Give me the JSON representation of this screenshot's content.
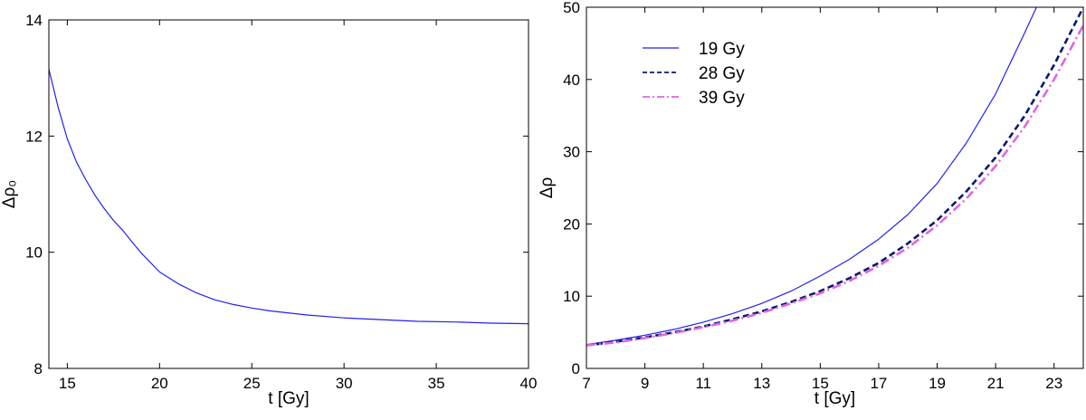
{
  "chart_data": [
    {
      "type": "line",
      "title": "",
      "xlabel": "t [Gy]",
      "ylabel": "Δρ₀",
      "xlim": [
        14,
        40
      ],
      "ylim": [
        8,
        14
      ],
      "xticks": [
        15,
        20,
        25,
        30,
        35,
        40
      ],
      "yticks": [
        8,
        10,
        12,
        14
      ],
      "grid": false,
      "series": [
        {
          "color": "#2222ee",
          "dash": "solid",
          "x": [
            14,
            14.5,
            15,
            15.5,
            16,
            16.5,
            17,
            17.5,
            18,
            18.5,
            19,
            20,
            21,
            22,
            23,
            24,
            25,
            26,
            28,
            30,
            32,
            34,
            36,
            38,
            40
          ],
          "y": [
            13.15,
            12.5,
            11.95,
            11.55,
            11.25,
            10.98,
            10.75,
            10.55,
            10.38,
            10.18,
            9.99,
            9.66,
            9.46,
            9.3,
            9.18,
            9.1,
            9.04,
            8.99,
            8.92,
            8.87,
            8.84,
            8.81,
            8.8,
            8.78,
            8.77
          ]
        }
      ]
    },
    {
      "type": "line",
      "title": "",
      "xlabel": "t [Gy]",
      "ylabel": "Δρ",
      "xlim": [
        7,
        24
      ],
      "ylim": [
        0,
        50
      ],
      "xticks": [
        7,
        9,
        11,
        13,
        15,
        17,
        19,
        21,
        23
      ],
      "yticks": [
        0,
        10,
        20,
        30,
        40,
        50
      ],
      "grid": false,
      "legend_position": "top-left",
      "series": [
        {
          "name": "19 Gy",
          "color": "#2222ee",
          "dash": "solid",
          "x": [
            7,
            8,
            9,
            10,
            11,
            12,
            13,
            14,
            15,
            16,
            17,
            18,
            19,
            20,
            21,
            22,
            22.4
          ],
          "y": [
            3.3,
            3.9,
            4.6,
            5.4,
            6.4,
            7.6,
            9.0,
            10.7,
            12.8,
            15.1,
            17.9,
            21.3,
            25.6,
            31.2,
            38.0,
            46.5,
            50
          ]
        },
        {
          "name": "28 Gy",
          "color": "#0a1a6e",
          "dash": "dashed",
          "x": [
            7,
            8,
            9,
            10,
            11,
            12,
            13,
            14,
            15,
            16,
            17,
            18,
            19,
            20,
            21,
            22,
            23,
            24
          ],
          "y": [
            3.2,
            3.7,
            4.3,
            5.0,
            5.8,
            6.8,
            7.9,
            9.2,
            10.7,
            12.5,
            14.6,
            17.3,
            20.5,
            24.5,
            29.2,
            35.0,
            42.0,
            50.0
          ]
        },
        {
          "name": "39 Gy",
          "color": "#e066e0",
          "dash": "dashdot",
          "x": [
            7,
            8,
            9,
            10,
            11,
            12,
            13,
            14,
            15,
            16,
            17,
            18,
            19,
            20,
            21,
            22,
            23,
            24
          ],
          "y": [
            3.2,
            3.6,
            4.2,
            4.9,
            5.7,
            6.6,
            7.7,
            9.0,
            10.4,
            12.1,
            14.2,
            16.7,
            19.8,
            23.5,
            28.0,
            33.5,
            40.0,
            47.5
          ]
        }
      ]
    }
  ]
}
